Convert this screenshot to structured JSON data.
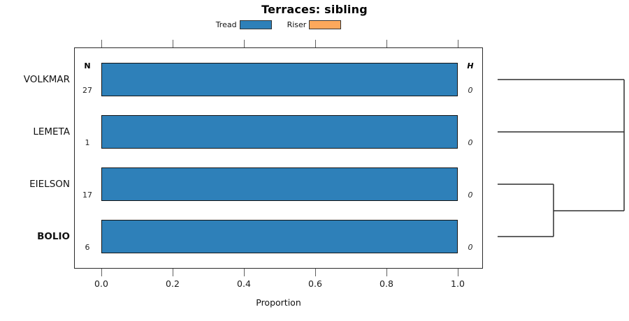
{
  "title": "Terraces: sibling",
  "legend": {
    "items": [
      {
        "label": "Tread",
        "color": "#2E80B9"
      },
      {
        "label": "Riser",
        "color": "#FCA85C"
      }
    ]
  },
  "axis": {
    "xlabel": "Proportion",
    "ticks": [
      "0.0",
      "0.2",
      "0.4",
      "0.6",
      "0.8",
      "1.0"
    ]
  },
  "columns": {
    "n_header": "N",
    "h_header": "H"
  },
  "rows": [
    {
      "label": "VOLKMAR",
      "n": "27",
      "h": "0",
      "tread": 1.0,
      "riser": 0.0,
      "bold": false
    },
    {
      "label": "LEMETA",
      "n": "1",
      "h": "0",
      "tread": 1.0,
      "riser": 0.0,
      "bold": false
    },
    {
      "label": "EIELSON",
      "n": "17",
      "h": "0",
      "tread": 1.0,
      "riser": 0.0,
      "bold": false
    },
    {
      "label": "BOLIO",
      "n": "6",
      "h": "0",
      "tread": 1.0,
      "riser": 0.0,
      "bold": true
    }
  ],
  "chart_data": {
    "type": "bar",
    "orientation": "horizontal",
    "title": "Terraces: sibling",
    "categories": [
      "VOLKMAR",
      "LEMETA",
      "EIELSON",
      "BOLIO"
    ],
    "series": [
      {
        "name": "Tread",
        "color": "#2E80B9",
        "values": [
          1.0,
          1.0,
          1.0,
          1.0
        ]
      },
      {
        "name": "Riser",
        "color": "#FCA85C",
        "values": [
          0.0,
          0.0,
          0.0,
          0.0
        ]
      }
    ],
    "annotations": {
      "N": [
        27,
        1,
        17,
        6
      ],
      "H": [
        0,
        0,
        0,
        0
      ]
    },
    "xlabel": "Proportion",
    "xlim": [
      0.0,
      1.0
    ],
    "x_ticks": [
      0.0,
      0.2,
      0.4,
      0.6,
      0.8,
      1.0
    ],
    "grid": false,
    "legend_position": "top",
    "dendrogram": {
      "position": "right",
      "merges": [
        {
          "pair": [
            "EIELSON",
            "BOLIO"
          ]
        },
        {
          "pair": [
            "VOLKMAR",
            "LEMETA"
          ]
        },
        {
          "pair": [
            [
              "VOLKMAR",
              "LEMETA"
            ],
            [
              "EIELSON",
              "BOLIO"
            ]
          ]
        }
      ],
      "segments": [
        {
          "x1": 712,
          "y1": 114,
          "x2": 893,
          "y2": 114
        },
        {
          "x1": 712,
          "y1": 189,
          "x2": 893,
          "y2": 189
        },
        {
          "x1": 893,
          "y1": 114,
          "x2": 893,
          "y2": 302
        },
        {
          "x1": 712,
          "y1": 264,
          "x2": 792,
          "y2": 264
        },
        {
          "x1": 712,
          "y1": 339,
          "x2": 792,
          "y2": 339
        },
        {
          "x1": 792,
          "y1": 264,
          "x2": 792,
          "y2": 339
        },
        {
          "x1": 792,
          "y1": 302,
          "x2": 893,
          "y2": 302
        }
      ]
    }
  }
}
